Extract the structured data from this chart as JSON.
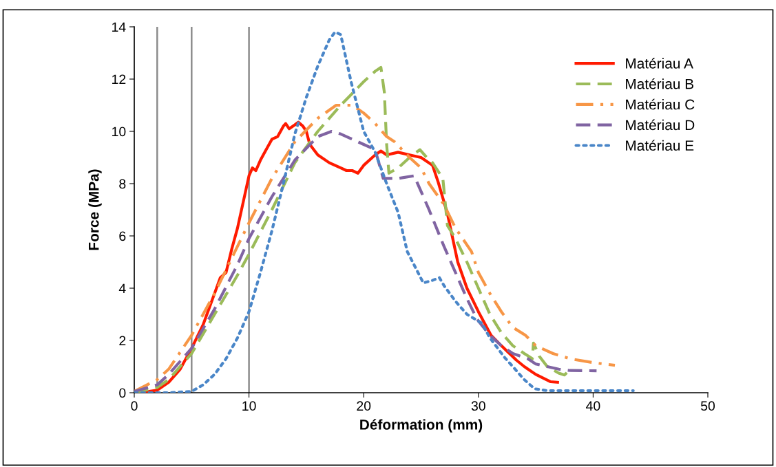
{
  "chart_data": {
    "type": "line",
    "xlabel": "Déformation (mm)",
    "ylabel": "Force (MPa)",
    "xlim": [
      0,
      50
    ],
    "xticks": [
      0,
      10,
      20,
      30,
      40,
      50
    ],
    "ylim": [
      0,
      14
    ],
    "yticks": [
      0,
      2,
      4,
      6,
      8,
      10,
      12,
      14
    ],
    "grid": false,
    "legend": "top right",
    "marker": "none",
    "ref_lines": [
      {
        "axis": "x",
        "value": 2,
        "color": "#8c8c8c"
      },
      {
        "axis": "x",
        "value": 5,
        "color": "#8c8c8c"
      },
      {
        "axis": "x",
        "value": 10,
        "color": "#8c8c8c"
      }
    ],
    "series": [
      {
        "name": "Matériau A",
        "color": "#ff1a00",
        "line_style": "solid",
        "x": [
          0.5,
          2,
          3,
          4,
          5,
          6,
          7,
          7.5,
          8,
          8.5,
          9,
          9.5,
          10,
          10.3,
          10.6,
          11,
          11.5,
          12,
          12.5,
          13,
          13.2,
          13.5,
          14,
          14.3,
          14.7,
          15,
          15.3,
          16,
          17,
          18,
          18.5,
          19,
          19.5,
          20,
          21,
          21.5,
          22,
          23,
          24,
          25,
          26,
          26.5,
          27.3,
          28.2,
          29,
          30,
          31.1,
          32,
          33.3,
          34,
          35,
          36.3,
          36.9
        ],
        "values": [
          0,
          0.1,
          0.4,
          0.9,
          1.7,
          2.6,
          3.8,
          4.4,
          4.6,
          5.5,
          6.3,
          7.3,
          8.3,
          8.6,
          8.5,
          8.9,
          9.3,
          9.7,
          9.8,
          10.2,
          10.3,
          10.1,
          10.25,
          10.35,
          10.2,
          10.0,
          9.5,
          9.1,
          8.8,
          8.6,
          8.5,
          8.5,
          8.4,
          8.7,
          9.1,
          9.25,
          9.1,
          9.2,
          9.1,
          9.0,
          8.7,
          8.05,
          6.85,
          5.0,
          4.0,
          3.1,
          2.2,
          1.8,
          1.25,
          1.0,
          0.7,
          0.42,
          0.4
        ]
      },
      {
        "name": "Matériau B",
        "color": "#9bbb59",
        "line_style": "dashed",
        "x": [
          0,
          2,
          3,
          5,
          7,
          9,
          10,
          12,
          14,
          16,
          18,
          20,
          21,
          21.5,
          21.8,
          22,
          22.2,
          23,
          24,
          24.9,
          25.5,
          26,
          26.9,
          27.3,
          28,
          29,
          30,
          31,
          32,
          33,
          34,
          34.7,
          34.8,
          35.3,
          36,
          37,
          37.5,
          37.8
        ],
        "values": [
          0,
          0.2,
          0.5,
          1.5,
          3.0,
          4.5,
          5.3,
          7.0,
          8.8,
          10.0,
          11.0,
          11.9,
          12.3,
          12.45,
          11.5,
          9.5,
          8.4,
          8.6,
          9.0,
          9.3,
          9.0,
          8.8,
          8.2,
          6.4,
          5.9,
          5.0,
          4.0,
          3.0,
          2.3,
          1.8,
          1.5,
          1.3,
          1.9,
          1.4,
          1.0,
          0.75,
          0.68,
          0.8
        ]
      },
      {
        "name": "Matériau C",
        "color": "#f79646",
        "line_style": "dashdot",
        "x": [
          0,
          2,
          3,
          5,
          7,
          9,
          10,
          12,
          14,
          16,
          17.6,
          19,
          20,
          21,
          22,
          22.7,
          24,
          25,
          25.7,
          27,
          28,
          29.4,
          30,
          31,
          32,
          33,
          34.1,
          35,
          36.5,
          38,
          40,
          41.9
        ],
        "values": [
          0.05,
          0.5,
          0.9,
          2.2,
          3.8,
          5.6,
          6.5,
          8.2,
          9.6,
          10.5,
          11.0,
          11.0,
          10.7,
          10.3,
          9.8,
          9.6,
          9.0,
          8.6,
          8.0,
          7.2,
          6.3,
          5.4,
          4.6,
          3.8,
          3.1,
          2.5,
          2.2,
          1.8,
          1.5,
          1.3,
          1.15,
          1.05
        ]
      },
      {
        "name": "Matériau D",
        "color": "#8064a2",
        "line_style": "dashed",
        "x": [
          0,
          2,
          3,
          5,
          7,
          9,
          10,
          12,
          14,
          16,
          17.2,
          18,
          19,
          20,
          21,
          21.7,
          23,
          24.4,
          25.7,
          27,
          27.8,
          29,
          29.9,
          31,
          32,
          33,
          34.3,
          35,
          36,
          37,
          38,
          40.3
        ],
        "values": [
          0.05,
          0.3,
          0.7,
          1.7,
          3.2,
          4.9,
          5.9,
          7.5,
          8.9,
          9.8,
          10.0,
          9.9,
          9.7,
          9.5,
          9.3,
          8.2,
          8.2,
          8.3,
          7.0,
          5.6,
          4.8,
          3.6,
          2.8,
          2.2,
          1.8,
          1.5,
          1.3,
          1.1,
          1.0,
          0.9,
          0.85,
          0.84
        ]
      },
      {
        "name": "Matériau E",
        "color": "#4a86c8",
        "line_style": "dotted",
        "x": [
          0,
          3,
          5,
          6,
          7,
          8,
          9,
          10,
          11,
          12,
          13,
          14,
          15,
          16,
          17,
          17.5,
          18,
          18.9,
          20,
          21,
          22,
          23,
          23.8,
          25.2,
          26,
          26.6,
          27,
          28,
          29,
          30.3,
          31,
          32.3,
          33,
          34,
          34.9,
          36,
          38,
          43.5
        ],
        "values": [
          0,
          0,
          0.05,
          0.3,
          0.7,
          1.3,
          2.1,
          3.1,
          4.6,
          6.2,
          8.0,
          9.9,
          11.3,
          12.5,
          13.5,
          13.8,
          13.7,
          11.9,
          10.0,
          9.2,
          8.0,
          6.9,
          5.4,
          4.2,
          4.3,
          4.4,
          4.1,
          3.5,
          3.0,
          2.66,
          2.1,
          1.34,
          1.0,
          0.5,
          0.15,
          0.08,
          0.08,
          0.08
        ]
      }
    ]
  }
}
